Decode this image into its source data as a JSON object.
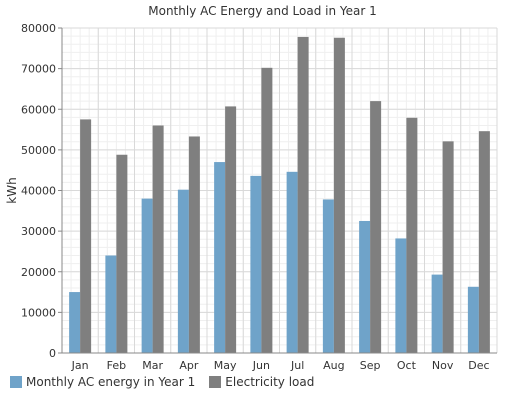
{
  "chart_data": {
    "type": "bar",
    "title": "Monthly AC Energy and Load in Year 1",
    "xlabel": "",
    "ylabel": "kWh",
    "ylim": [
      0,
      80000
    ],
    "yticks": [
      0,
      10000,
      20000,
      30000,
      40000,
      50000,
      60000,
      70000,
      80000
    ],
    "grid": true,
    "legend_position": "bottom-left",
    "categories": [
      "Jan",
      "Feb",
      "Mar",
      "Apr",
      "May",
      "Jun",
      "Jul",
      "Aug",
      "Sep",
      "Oct",
      "Nov",
      "Dec"
    ],
    "series": [
      {
        "name": "Monthly AC energy in Year 1",
        "color": "#6fa3c9",
        "values": [
          15000,
          24000,
          38000,
          40200,
          47000,
          43600,
          44600,
          37800,
          32500,
          28200,
          19300,
          16300
        ]
      },
      {
        "name": "Electricity load",
        "color": "#7f7f7f",
        "values": [
          57500,
          48800,
          56000,
          53300,
          60700,
          70200,
          77800,
          77600,
          62000,
          57900,
          52100,
          54600
        ]
      }
    ]
  }
}
